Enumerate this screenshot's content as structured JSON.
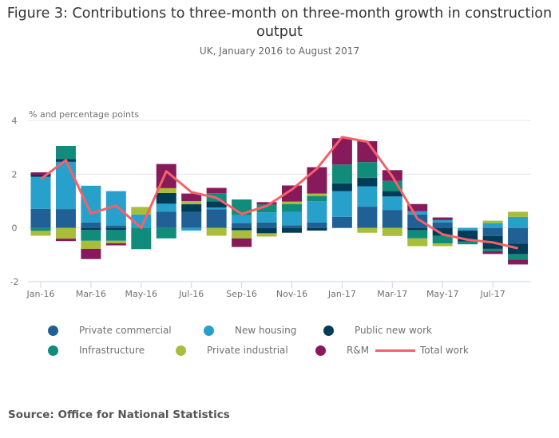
{
  "header": {
    "title": "Figure 3: Contributions to three-month on three-month growth in construction output",
    "subtitle": "UK, January 2016 to August 2017"
  },
  "source": "Source: Office for National Statistics",
  "chart_data": {
    "type": "bar",
    "stacked": true,
    "title": "Figure 3: Contributions to three-month on three-month growth in construction output",
    "subtitle": "UK, January 2016 to August 2017",
    "ylabel": "% and percentage points",
    "xlabel": "",
    "ylim": [
      -2,
      4
    ],
    "yticks": [
      -2,
      0,
      2,
      4
    ],
    "grid": true,
    "legend_position": "bottom",
    "categories": [
      "Jan-16",
      "Feb-16",
      "Mar-16",
      "Apr-16",
      "May-16",
      "Jun-16",
      "Jul-16",
      "Aug-16",
      "Sep-16",
      "Oct-16",
      "Nov-16",
      "Dec-16",
      "Jan-17",
      "Feb-17",
      "Mar-17",
      "Apr-17",
      "May-17",
      "Jun-17",
      "Jul-17",
      "Aug-17"
    ],
    "xtick_labels": [
      "Jan-16",
      "Mar-16",
      "May-16",
      "Jul-16",
      "Sep-16",
      "Nov-16",
      "Jan-17",
      "Mar-17",
      "May-17",
      "Jul-17"
    ],
    "series": [
      {
        "name": "Private commercial",
        "color": "#206095",
        "values": [
          0.71,
          0.7,
          0.2,
          0.09,
          0.0,
          0.6,
          0.59,
          0.69,
          0.18,
          0.2,
          0.1,
          0.2,
          0.41,
          0.79,
          0.67,
          0.5,
          0.2,
          0.0,
          -0.3,
          -0.58
        ]
      },
      {
        "name": "New housing",
        "color": "#27a0cc",
        "values": [
          1.19,
          1.76,
          1.37,
          1.28,
          0.5,
          0.3,
          -0.1,
          0.07,
          0.29,
          0.38,
          0.5,
          0.79,
          0.96,
          0.76,
          0.5,
          0.12,
          0.09,
          -0.1,
          0.18,
          0.41
        ]
      },
      {
        "name": "Public new work",
        "color": "#003c57",
        "values": [
          0.08,
          0.1,
          -0.08,
          -0.08,
          0.0,
          0.4,
          0.29,
          0.23,
          -0.09,
          -0.2,
          -0.18,
          -0.1,
          0.29,
          0.32,
          0.2,
          -0.09,
          -0.29,
          -0.41,
          -0.48,
          -0.4
        ]
      },
      {
        "name": "Infrastructure",
        "color": "#118c7b",
        "values": [
          -0.11,
          0.49,
          -0.4,
          -0.4,
          -0.79,
          -0.39,
          0.0,
          0.3,
          0.59,
          0.29,
          0.29,
          0.2,
          0.7,
          0.58,
          0.38,
          -0.3,
          -0.29,
          -0.1,
          -0.09,
          -0.2
        ]
      },
      {
        "name": "Private industrial",
        "color": "#a8bd3a",
        "values": [
          -0.18,
          -0.4,
          -0.3,
          -0.09,
          0.28,
          0.18,
          0.12,
          -0.29,
          -0.3,
          -0.12,
          0.09,
          0.09,
          0.0,
          -0.18,
          -0.3,
          -0.29,
          -0.1,
          0.0,
          0.09,
          0.19
        ]
      },
      {
        "name": "R&M",
        "color": "#871a5b",
        "values": [
          0.09,
          -0.09,
          -0.38,
          -0.08,
          0.0,
          0.9,
          0.28,
          0.2,
          -0.32,
          0.09,
          0.6,
          0.98,
          0.98,
          0.78,
          0.4,
          0.27,
          0.1,
          0.0,
          -0.1,
          -0.18
        ]
      }
    ],
    "line_series": {
      "name": "Total work",
      "color": "#f66068",
      "values": [
        1.82,
        2.52,
        0.54,
        0.83,
        0.0,
        2.11,
        1.33,
        1.12,
        0.52,
        0.82,
        1.43,
        2.21,
        3.38,
        3.21,
        1.92,
        0.34,
        -0.24,
        -0.44,
        -0.54,
        -0.76
      ]
    }
  },
  "legend": [
    {
      "label": "Private commercial",
      "color": "#206095",
      "kind": "dot"
    },
    {
      "label": "New housing",
      "color": "#27a0cc",
      "kind": "dot"
    },
    {
      "label": "Public new work",
      "color": "#003c57",
      "kind": "dot"
    },
    {
      "label": "Infrastructure",
      "color": "#118c7b",
      "kind": "dot"
    },
    {
      "label": "Private industrial",
      "color": "#a8bd3a",
      "kind": "dot"
    },
    {
      "label": "R&M",
      "color": "#871a5b",
      "kind": "dot"
    },
    {
      "label": "Total work",
      "color": "#f66068",
      "kind": "line"
    }
  ]
}
